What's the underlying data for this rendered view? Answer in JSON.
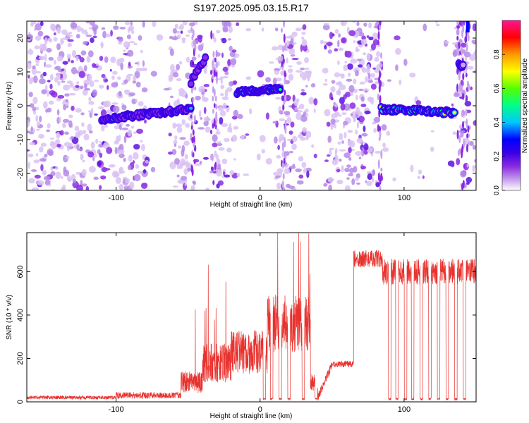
{
  "title": "S197.2025.095.03.15.R17",
  "chart_data": [
    {
      "type": "heatmap",
      "xlabel": "Height of straight line (km)",
      "ylabel": "Frequency (Hz)",
      "xlim": [
        -162,
        150
      ],
      "ylim": [
        -25,
        25
      ],
      "x_ticks": [
        -100,
        0,
        100
      ],
      "y_ticks": [
        -20,
        -10,
        0,
        10,
        20
      ],
      "colorbar": {
        "label": "Normalized spectral amplitude",
        "range": [
          0,
          1
        ],
        "ticks": [
          0.0,
          0.2,
          0.4,
          0.6,
          0.8
        ],
        "colors": [
          "#ffffff",
          "#c9a4ee",
          "#8a2be2",
          "#3a00e6",
          "#0000ff",
          "#00c8ff",
          "#00ff88",
          "#55ff00",
          "#ffff00",
          "#ff9900",
          "#ff0000",
          "#ff1493"
        ]
      },
      "signal_tracks": [
        {
          "x_start": -110,
          "x_end": -48,
          "freq_start": -4,
          "freq_end": -1,
          "peak": 0.45
        },
        {
          "x_start": -48,
          "x_end": -38,
          "freq_start": 7,
          "freq_end": 14,
          "peak": 0.35
        },
        {
          "x_start": -16,
          "x_end": 14,
          "freq_start": 4,
          "freq_end": 5,
          "peak": 0.62
        },
        {
          "x_start": 84,
          "x_end": 135,
          "freq_start": -1,
          "freq_end": -2,
          "peak": 0.82
        },
        {
          "x_start": 138,
          "x_end": 141,
          "freq_start": 12,
          "freq_end": 12,
          "peak": 0.3
        }
      ]
    },
    {
      "type": "line",
      "xlabel": "Height of straight line (km)",
      "ylabel": "SNR (10 * v/v)",
      "xlim": [
        -162,
        150
      ],
      "ylim": [
        0,
        780
      ],
      "x_ticks": [
        -100,
        0,
        100
      ],
      "y_ticks": [
        0,
        200,
        400,
        600
      ],
      "color": "#e8322e",
      "segments": [
        {
          "x_start": -162,
          "x_end": -100,
          "level": 20,
          "noise": 8
        },
        {
          "x_start": -100,
          "x_end": -55,
          "level": 30,
          "noise": 15
        },
        {
          "x_start": -55,
          "x_end": -40,
          "level": 90,
          "noise": 50
        },
        {
          "x_start": -40,
          "x_end": -20,
          "level": 180,
          "noise": 90
        },
        {
          "x_start": -20,
          "x_end": 5,
          "level": 230,
          "noise": 100
        },
        {
          "x_start": 5,
          "x_end": 35,
          "level": 360,
          "noise": 130
        },
        {
          "x_start": 35,
          "x_end": 50,
          "level": 90,
          "noise": 40
        },
        {
          "x_start": 50,
          "x_end": 65,
          "level": 175,
          "noise": 15
        },
        {
          "x_start": 65,
          "x_end": 85,
          "level": 660,
          "noise": 40
        },
        {
          "x_start": 85,
          "x_end": 150,
          "level": 600,
          "noise": 60
        }
      ],
      "dropouts_to_zero": [
        3,
        8,
        14,
        20,
        30,
        39,
        90,
        95,
        101,
        106,
        112,
        118,
        124,
        130,
        136,
        142
      ]
    }
  ]
}
